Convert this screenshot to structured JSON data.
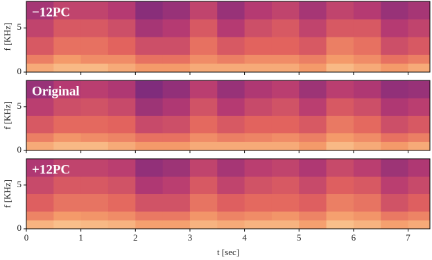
{
  "chart_data": [
    {
      "type": "heatmap",
      "annotation": "−12PC",
      "ylabel": "f [KHz]",
      "xlim": [
        0,
        7.4
      ],
      "xticks": [
        0,
        1,
        2,
        3,
        4,
        5,
        6,
        7
      ],
      "ylim": [
        0,
        8
      ],
      "yticks": [
        0,
        5
      ],
      "show_xtick_labels": false,
      "xbins": [
        0,
        0.5,
        1,
        1.5,
        2,
        2.5,
        3,
        3.5,
        4,
        4.5,
        5,
        5.5,
        6,
        6.5,
        7,
        7.4
      ],
      "ybins": [
        0,
        1,
        2,
        4,
        6,
        8
      ],
      "colormap": [
        "#3d1466",
        "#7a2a7d",
        "#b53a72",
        "#e2635e",
        "#f49a6a",
        "#fcd8a0"
      ],
      "values": [
        [
          0.85,
          0.9,
          0.9,
          0.85,
          0.8,
          0.8,
          0.85,
          0.85,
          0.85,
          0.85,
          0.8,
          0.9,
          0.85,
          0.8,
          0.85
        ],
        [
          0.7,
          0.8,
          0.75,
          0.75,
          0.65,
          0.65,
          0.75,
          0.7,
          0.75,
          0.75,
          0.7,
          0.8,
          0.75,
          0.65,
          0.7
        ],
        [
          0.55,
          0.65,
          0.65,
          0.6,
          0.5,
          0.5,
          0.65,
          0.55,
          0.6,
          0.6,
          0.55,
          0.7,
          0.65,
          0.5,
          0.55
        ],
        [
          0.45,
          0.55,
          0.55,
          0.5,
          0.35,
          0.4,
          0.55,
          0.4,
          0.5,
          0.55,
          0.45,
          0.55,
          0.55,
          0.4,
          0.45
        ],
        [
          0.35,
          0.45,
          0.45,
          0.4,
          0.25,
          0.3,
          0.45,
          0.3,
          0.4,
          0.45,
          0.35,
          0.45,
          0.4,
          0.3,
          0.35
        ]
      ]
    },
    {
      "type": "heatmap",
      "annotation": "Original",
      "ylabel": "f [KHz]",
      "xlim": [
        0,
        7.4
      ],
      "xticks": [
        0,
        1,
        2,
        3,
        4,
        5,
        6,
        7
      ],
      "ylim": [
        0,
        8
      ],
      "yticks": [
        0,
        5
      ],
      "show_xtick_labels": false,
      "xbins": [
        0,
        0.5,
        1,
        1.5,
        2,
        2.5,
        3,
        3.5,
        4,
        4.5,
        5,
        5.5,
        6,
        6.5,
        7,
        7.4
      ],
      "ybins": [
        0,
        1,
        2,
        4,
        6,
        8
      ],
      "colormap": [
        "#3d1466",
        "#7a2a7d",
        "#b53a72",
        "#e2635e",
        "#f49a6a",
        "#fcd8a0"
      ],
      "values": [
        [
          0.85,
          0.9,
          0.9,
          0.85,
          0.8,
          0.8,
          0.85,
          0.85,
          0.85,
          0.85,
          0.8,
          0.9,
          0.85,
          0.8,
          0.85
        ],
        [
          0.7,
          0.78,
          0.75,
          0.72,
          0.65,
          0.65,
          0.75,
          0.7,
          0.72,
          0.75,
          0.7,
          0.8,
          0.75,
          0.65,
          0.7
        ],
        [
          0.55,
          0.62,
          0.62,
          0.6,
          0.48,
          0.5,
          0.62,
          0.55,
          0.6,
          0.6,
          0.55,
          0.68,
          0.62,
          0.5,
          0.55
        ],
        [
          0.42,
          0.5,
          0.52,
          0.48,
          0.32,
          0.38,
          0.52,
          0.4,
          0.48,
          0.52,
          0.42,
          0.55,
          0.5,
          0.38,
          0.42
        ],
        [
          0.3,
          0.4,
          0.42,
          0.38,
          0.22,
          0.28,
          0.42,
          0.3,
          0.38,
          0.42,
          0.32,
          0.42,
          0.38,
          0.28,
          0.3
        ]
      ]
    },
    {
      "type": "heatmap",
      "annotation": "+12PC",
      "ylabel": "f [KHz]",
      "xlabel": "t [sec]",
      "xlim": [
        0,
        7.4
      ],
      "xticks": [
        0,
        1,
        2,
        3,
        4,
        5,
        6,
        7
      ],
      "ylim": [
        0,
        8
      ],
      "yticks": [
        0,
        5
      ],
      "show_xtick_labels": true,
      "xbins": [
        0,
        0.5,
        1,
        1.5,
        2,
        2.5,
        3,
        3.5,
        4,
        4.5,
        5,
        5.5,
        6,
        6.5,
        7,
        7.4
      ],
      "ybins": [
        0,
        1,
        2,
        4,
        6,
        8
      ],
      "colormap": [
        "#3d1466",
        "#7a2a7d",
        "#b53a72",
        "#e2635e",
        "#f49a6a",
        "#fcd8a0"
      ],
      "values": [
        [
          0.88,
          0.92,
          0.9,
          0.88,
          0.82,
          0.82,
          0.88,
          0.85,
          0.88,
          0.88,
          0.82,
          0.92,
          0.88,
          0.82,
          0.85
        ],
        [
          0.72,
          0.8,
          0.78,
          0.75,
          0.68,
          0.68,
          0.78,
          0.72,
          0.75,
          0.78,
          0.72,
          0.82,
          0.78,
          0.68,
          0.72
        ],
        [
          0.58,
          0.66,
          0.66,
          0.62,
          0.52,
          0.52,
          0.66,
          0.58,
          0.62,
          0.62,
          0.58,
          0.7,
          0.66,
          0.52,
          0.58
        ],
        [
          0.48,
          0.55,
          0.55,
          0.52,
          0.38,
          0.42,
          0.55,
          0.45,
          0.52,
          0.55,
          0.48,
          0.58,
          0.55,
          0.42,
          0.48
        ],
        [
          0.38,
          0.45,
          0.45,
          0.42,
          0.28,
          0.32,
          0.45,
          0.35,
          0.42,
          0.45,
          0.38,
          0.48,
          0.42,
          0.32,
          0.38
        ]
      ]
    }
  ]
}
